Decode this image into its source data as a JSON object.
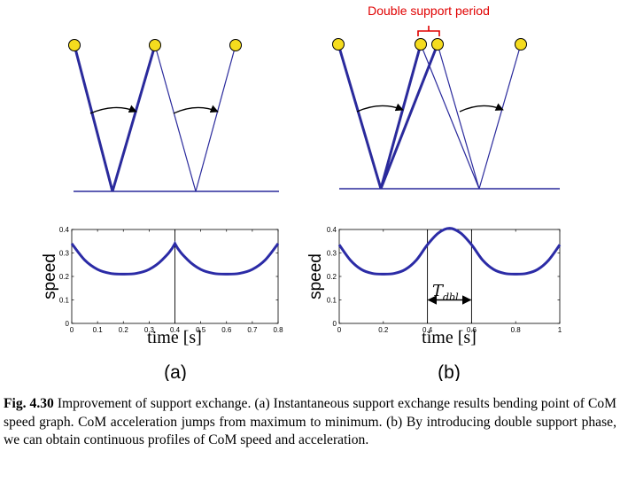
{
  "figure": {
    "panel_a_label": "(a)",
    "panel_b_label": "(b)",
    "double_support_label": "Double support period",
    "tdbl_main": "T",
    "tdbl_sub": "dbl",
    "colors": {
      "leg": "#2a2a9c",
      "curve": "#2b2ba6",
      "joint": "#f5dc1e",
      "annotation": "#e00000"
    }
  },
  "chart_data": [
    {
      "type": "line",
      "title": "",
      "xlabel": "time [s]",
      "ylabel": "speed",
      "xlim": [
        0,
        0.8
      ],
      "ylim": [
        0,
        0.4
      ],
      "xticks": [
        "0",
        "0.1",
        "0.2",
        "0.3",
        "0.4",
        "0.5",
        "0.6",
        "0.7",
        "0.8"
      ],
      "yticks": [
        "0",
        "0.1",
        "0.2",
        "0.3",
        "0.4"
      ],
      "series": [
        {
          "x": [
            0,
            0.05,
            0.1,
            0.15,
            0.2,
            0.25,
            0.3,
            0.35,
            0.4,
            0.45,
            0.5,
            0.55,
            0.6,
            0.65,
            0.7,
            0.75,
            0.8
          ],
          "y": [
            0.34,
            0.27,
            0.23,
            0.213,
            0.21,
            0.213,
            0.23,
            0.27,
            0.34,
            0.27,
            0.23,
            0.213,
            0.21,
            0.213,
            0.23,
            0.27,
            0.34
          ]
        }
      ],
      "vlines": [
        0.4
      ],
      "grid": false
    },
    {
      "type": "line",
      "title": "",
      "xlabel": "time [s]",
      "ylabel": "speed",
      "xlim": [
        0,
        1
      ],
      "ylim": [
        0,
        0.4
      ],
      "xticks": [
        "0",
        "0.2",
        "0.4",
        "0.6",
        "0.8",
        "1"
      ],
      "yticks": [
        "0",
        "0.1",
        "0.2",
        "0.3",
        "0.4"
      ],
      "series": [
        {
          "x": [
            0,
            0.05,
            0.1,
            0.15,
            0.2,
            0.25,
            0.3,
            0.35,
            0.4,
            0.45,
            0.5,
            0.55,
            0.6,
            0.65,
            0.7,
            0.75,
            0.8,
            0.85,
            0.9,
            0.95,
            1.0
          ],
          "y": [
            0.335,
            0.27,
            0.23,
            0.213,
            0.21,
            0.213,
            0.23,
            0.27,
            0.335,
            0.385,
            0.405,
            0.385,
            0.335,
            0.27,
            0.23,
            0.213,
            0.21,
            0.213,
            0.23,
            0.27,
            0.335
          ]
        }
      ],
      "vlines": [
        0.4,
        0.6
      ],
      "annotation_arrow": [
        0.4,
        0.6
      ],
      "grid": false
    }
  ],
  "caption": {
    "label": "Fig. 4.30",
    "text": "Improvement of support exchange. (a) Instantaneous support exchange results bending point of CoM speed graph. CoM acceleration jumps from maximum to minimum. (b) By introducing double support phase, we can obtain continuous profiles of CoM speed and acceleration."
  }
}
